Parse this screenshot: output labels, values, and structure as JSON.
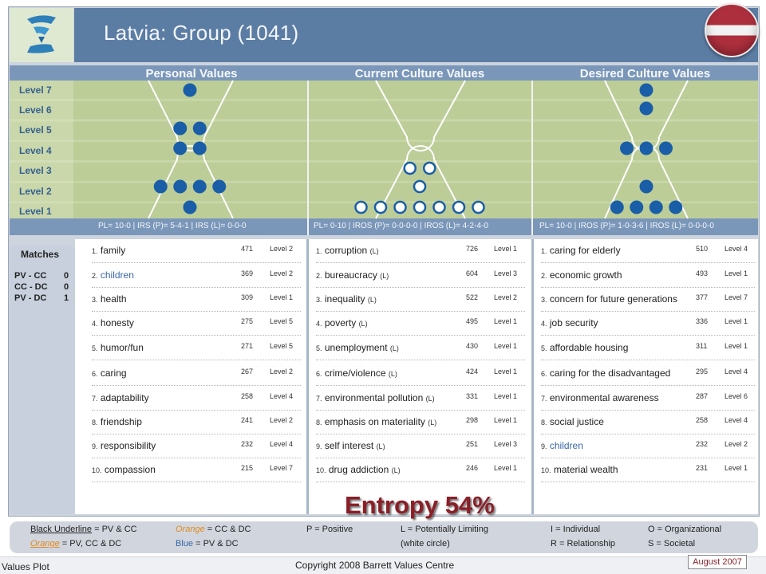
{
  "header": {
    "title": "Latvia: Group (1041)",
    "flag_colors": [
      "#ad2f3d",
      "#f2f2f2"
    ]
  },
  "columns": [
    {
      "title": "Personal Values",
      "stats": "PL= 10-0 | IRS (P)= 5-4-1 | IRS (L)= 0-0-0"
    },
    {
      "title": "Current Culture Values",
      "stats": "PL= 0-10 | IROS (P)= 0-0-0-0 | IROS (L)= 4-2-4-0"
    },
    {
      "title": "Desired Culture Values",
      "stats": "PL= 10-0 | IROS (P)= 1-0-3-6 | IROS (L)= 0-0-0-0"
    }
  ],
  "levels": [
    "Level 7",
    "Level 6",
    "Level 5",
    "Level 4",
    "Level 3",
    "Level 2",
    "Level 1"
  ],
  "level_dots": {
    "personal": {
      "7": 1,
      "6": 0,
      "5": 2,
      "4": 2,
      "3": 0,
      "2": 4,
      "1": 1
    },
    "current": {
      "7": 0,
      "6": 0,
      "5": 0,
      "4": 0,
      "3": 2,
      "2": 1,
      "1": 7
    },
    "desired": {
      "7": 1,
      "6": 1,
      "5": 0,
      "4": 3,
      "3": 0,
      "2": 1,
      "1": 4
    }
  },
  "colors": {
    "positive_dot": "#1a5ea8",
    "limiting_dot": "#ffffff",
    "header_bar": "#5b7da4"
  },
  "matches": {
    "title": "Matches",
    "rows": [
      {
        "label": "PV - CC",
        "value": "0"
      },
      {
        "label": "CC - DC",
        "value": "0"
      },
      {
        "label": "PV - DC",
        "value": "1"
      }
    ]
  },
  "lists": [
    [
      {
        "n": "1.",
        "name": "family",
        "tag": "",
        "count": "471",
        "level": "Level 2"
      },
      {
        "n": "2.",
        "name": "children",
        "tag": "",
        "count": "369",
        "level": "Level 2",
        "style": "blue"
      },
      {
        "n": "3.",
        "name": "health",
        "tag": "",
        "count": "309",
        "level": "Level 1"
      },
      {
        "n": "4.",
        "name": "honesty",
        "tag": "",
        "count": "275",
        "level": "Level 5"
      },
      {
        "n": "5.",
        "name": "humor/fun",
        "tag": "",
        "count": "271",
        "level": "Level 5"
      },
      {
        "n": "6.",
        "name": "caring",
        "tag": "",
        "count": "267",
        "level": "Level 2"
      },
      {
        "n": "7.",
        "name": "adaptability",
        "tag": "",
        "count": "258",
        "level": "Level 4"
      },
      {
        "n": "8.",
        "name": "friendship",
        "tag": "",
        "count": "241",
        "level": "Level 2"
      },
      {
        "n": "9.",
        "name": "responsibility",
        "tag": "",
        "count": "232",
        "level": "Level 4"
      },
      {
        "n": "10.",
        "name": "compassion",
        "tag": "",
        "count": "215",
        "level": "Level 7"
      }
    ],
    [
      {
        "n": "1.",
        "name": "corruption",
        "tag": "(L)",
        "count": "726",
        "level": "Level 1"
      },
      {
        "n": "2.",
        "name": "bureaucracy",
        "tag": "(L)",
        "count": "604",
        "level": "Level 3"
      },
      {
        "n": "3.",
        "name": "inequality",
        "tag": "(L)",
        "count": "522",
        "level": "Level 2"
      },
      {
        "n": "4.",
        "name": "poverty",
        "tag": "(L)",
        "count": "495",
        "level": "Level 1"
      },
      {
        "n": "5.",
        "name": "unemployment",
        "tag": "(L)",
        "count": "430",
        "level": "Level 1"
      },
      {
        "n": "6.",
        "name": "crime/violence",
        "tag": "(L)",
        "count": "424",
        "level": "Level 1"
      },
      {
        "n": "7.",
        "name": "environmental pollution",
        "tag": "(L)",
        "count": "331",
        "level": "Level 1"
      },
      {
        "n": "8.",
        "name": "emphasis on materiality",
        "tag": "(L)",
        "count": "298",
        "level": "Level 1"
      },
      {
        "n": "9.",
        "name": "self interest",
        "tag": "(L)",
        "count": "251",
        "level": "Level 3"
      },
      {
        "n": "10.",
        "name": "drug addiction",
        "tag": "(L)",
        "count": "246",
        "level": "Level 1"
      }
    ],
    [
      {
        "n": "1.",
        "name": "caring for elderly",
        "tag": "",
        "count": "510",
        "level": "Level 4"
      },
      {
        "n": "2.",
        "name": "economic growth",
        "tag": "",
        "count": "493",
        "level": "Level 1"
      },
      {
        "n": "3.",
        "name": "concern for future generations",
        "tag": "",
        "count": "377",
        "level": "Level 7"
      },
      {
        "n": "4.",
        "name": "job security",
        "tag": "",
        "count": "336",
        "level": "Level 1"
      },
      {
        "n": "5.",
        "name": "affordable housing",
        "tag": "",
        "count": "311",
        "level": "Level 1"
      },
      {
        "n": "6.",
        "name": "caring for the disadvantaged",
        "tag": "",
        "count": "295",
        "level": "Level 4"
      },
      {
        "n": "7.",
        "name": "environmental awareness",
        "tag": "",
        "count": "287",
        "level": "Level 6"
      },
      {
        "n": "8.",
        "name": "social justice",
        "tag": "",
        "count": "258",
        "level": "Level 4"
      },
      {
        "n": "9.",
        "name": "children",
        "tag": "",
        "count": "232",
        "level": "Level 2",
        "style": "blue"
      },
      {
        "n": "10.",
        "name": "material wealth",
        "tag": "",
        "count": "231",
        "level": "Level 1"
      }
    ]
  ],
  "entropy": "Entropy 54%",
  "legend": {
    "black_underline": "Black Underline",
    "black_underline_desc": "= PV & CC",
    "orange1": "Orange",
    "orange1_desc": "= CC & DC",
    "positive": "P = Positive",
    "limiting": "L = Potentially Limiting",
    "white_circle": "(white circle)",
    "individual": "I = Individual",
    "relationship": "R = Relationship",
    "organizational": "O = Organizational",
    "societal": "S = Societal",
    "orange2": "Orange",
    "orange2_desc": "= PV, CC & DC",
    "blue": "Blue",
    "blue_desc": "= PV & DC"
  },
  "footer": {
    "left": "Values Plot",
    "center": "Copyright 2008 Barrett Values Centre",
    "date": "August 2007"
  }
}
